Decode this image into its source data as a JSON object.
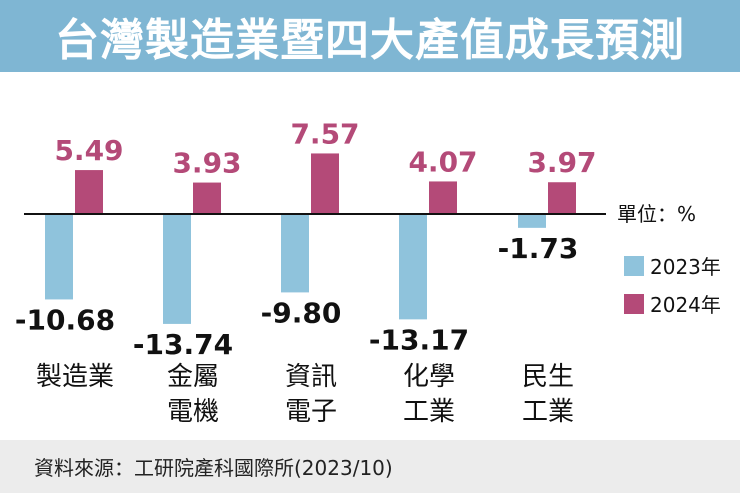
{
  "title": "台灣製造業暨四大產值成長預測",
  "source": "資料來源：工研院產科國際所(2023/10)",
  "colors": {
    "title_bg": "#7fb6d3",
    "series_2023": "#8fc3dc",
    "series_2024": "#b44a78",
    "label_2024": "#b44a78",
    "label_2023": "#111111",
    "axis": "#111111"
  },
  "chart_data": {
    "type": "bar",
    "title": "台灣製造業暨四大產值成長預測",
    "unit_label": "單位：%",
    "categories": [
      [
        "製造業"
      ],
      [
        "金屬",
        "電機"
      ],
      [
        "資訊",
        "電子"
      ],
      [
        "化學",
        "工業"
      ],
      [
        "民生",
        "工業"
      ]
    ],
    "series": [
      {
        "name": "2023年",
        "values": [
          -10.68,
          -13.74,
          -9.8,
          -13.17,
          -1.73
        ],
        "labels": [
          "-10.68",
          "-13.74",
          "-9.80",
          "-13.17",
          "-1.73"
        ]
      },
      {
        "name": "2024年",
        "values": [
          5.49,
          3.93,
          7.57,
          4.07,
          3.97
        ],
        "labels": [
          "5.49",
          "3.93",
          "7.57",
          "4.07",
          "3.97"
        ]
      }
    ],
    "ylim": [
      -14,
      8
    ],
    "legend_position": "right",
    "grid": false
  }
}
